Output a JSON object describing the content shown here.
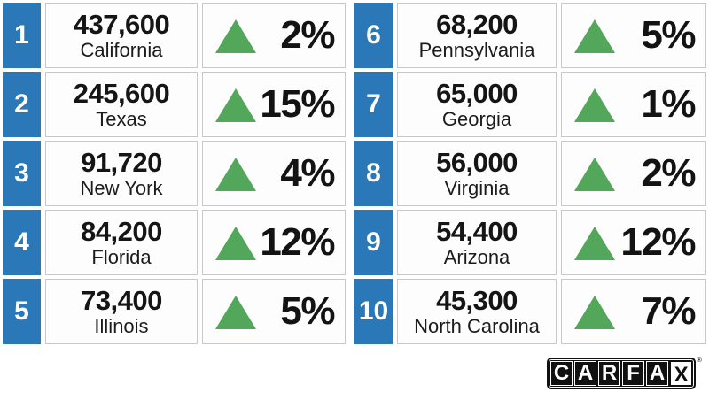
{
  "table": {
    "rows": [
      {
        "rank": "1",
        "value": "437,600",
        "state": "California",
        "change": "2%",
        "direction": "up"
      },
      {
        "rank": "2",
        "value": "245,600",
        "state": "Texas",
        "change": "15%",
        "direction": "up"
      },
      {
        "rank": "3",
        "value": "91,720",
        "state": "New York",
        "change": "4%",
        "direction": "up"
      },
      {
        "rank": "4",
        "value": "84,200",
        "state": "Florida",
        "change": "12%",
        "direction": "up"
      },
      {
        "rank": "5",
        "value": "73,400",
        "state": "Illinois",
        "change": "5%",
        "direction": "up"
      },
      {
        "rank": "6",
        "value": "68,200",
        "state": "Pennsylvania",
        "change": "5%",
        "direction": "up"
      },
      {
        "rank": "7",
        "value": "65,000",
        "state": "Georgia",
        "change": "1%",
        "direction": "up"
      },
      {
        "rank": "8",
        "value": "56,000",
        "state": "Virginia",
        "change": "2%",
        "direction": "up"
      },
      {
        "rank": "9",
        "value": "54,400",
        "state": "Arizona",
        "change": "12%",
        "direction": "up"
      },
      {
        "rank": "10",
        "value": "45,300",
        "state": "North Carolina",
        "change": "7%",
        "direction": "up"
      }
    ]
  },
  "logo": {
    "brand": "CARFAX",
    "letters": [
      "C",
      "A",
      "R",
      "F",
      "A",
      "X"
    ],
    "registered": "®"
  },
  "colors": {
    "rank_blue": "#2a78b8",
    "arrow_green": "#53a75a",
    "cell_border": "#c6c8ca",
    "text": "#151515",
    "background": "#ffffff"
  }
}
